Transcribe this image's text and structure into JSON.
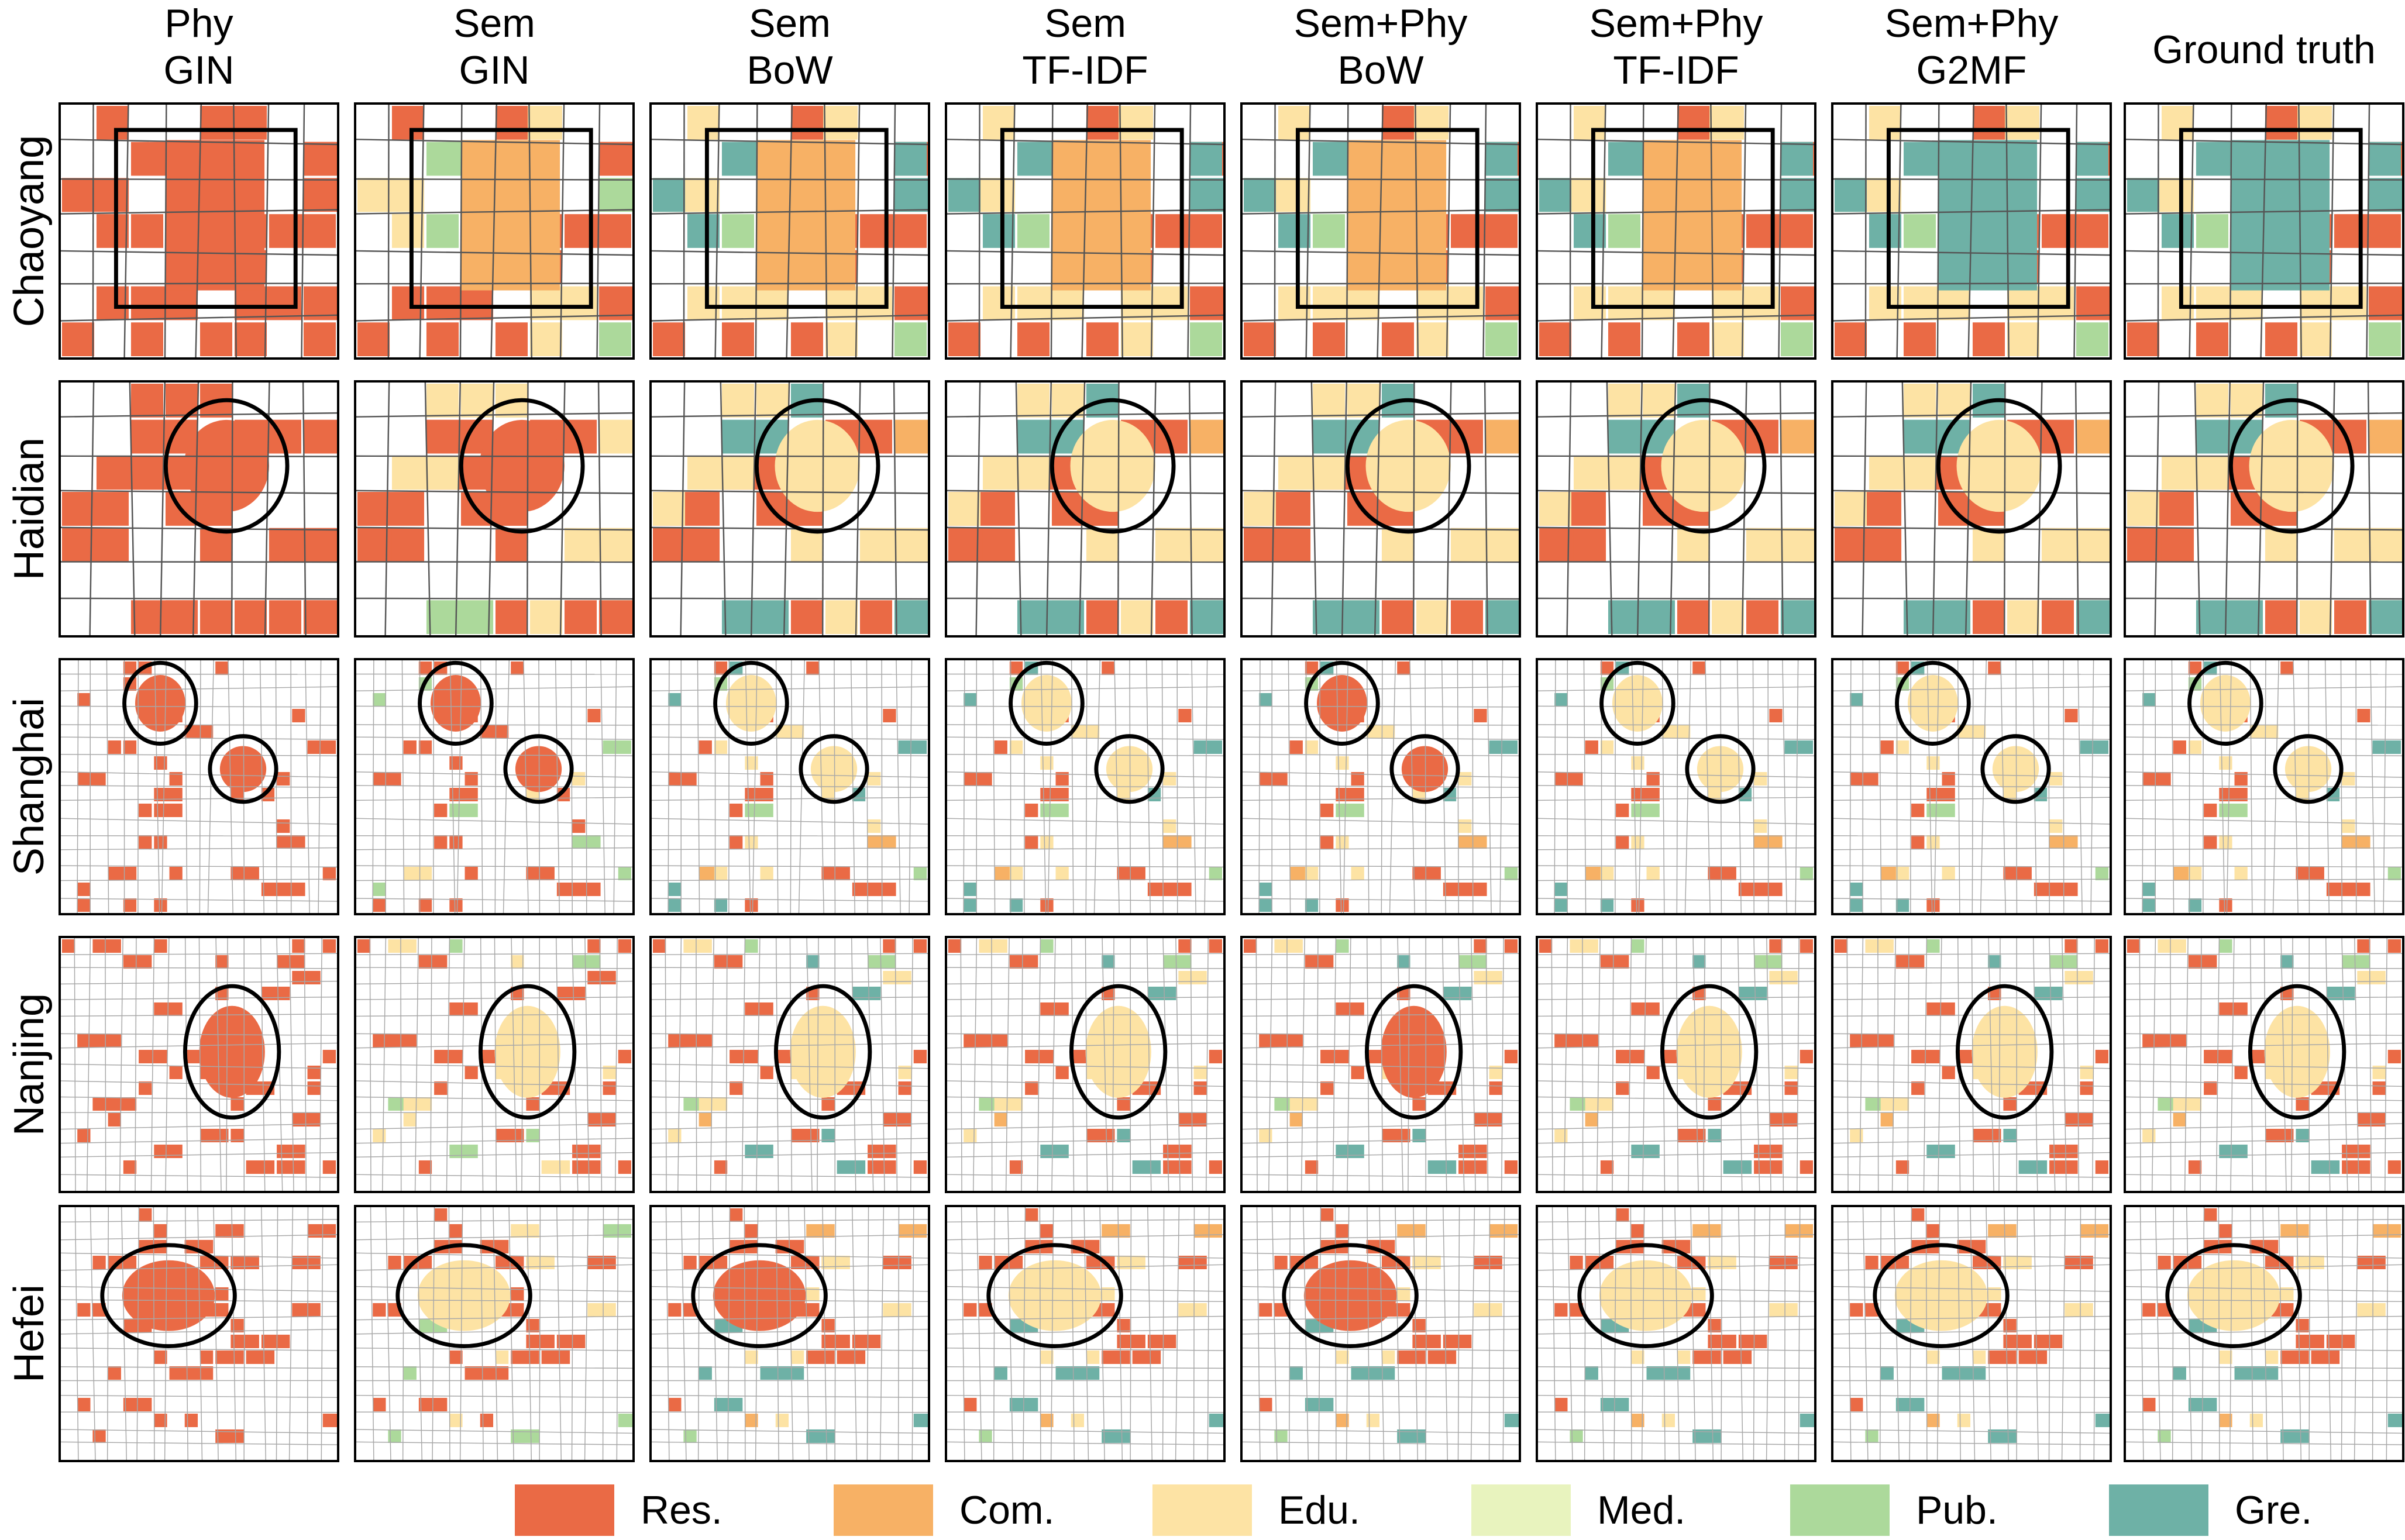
{
  "columns": [
    {
      "line1": "Phy",
      "line2": "GIN"
    },
    {
      "line1": "Sem",
      "line2": "GIN"
    },
    {
      "line1": "Sem",
      "line2": "BoW"
    },
    {
      "line1": "Sem",
      "line2": "TF-IDF"
    },
    {
      "line1": "Sem+Phy",
      "line2": "BoW"
    },
    {
      "line1": "Sem+Phy",
      "line2": "TF-IDF"
    },
    {
      "line1": "Sem+Phy",
      "line2": "G2MF"
    },
    {
      "line1": "Ground truth",
      "line2": ""
    }
  ],
  "rows": [
    "Chaoyang",
    "Haidian",
    "Shanghai",
    "Nanjing",
    "Hefei"
  ],
  "legend": [
    {
      "label": "Res.",
      "color": "#ea6a45"
    },
    {
      "label": "Com.",
      "color": "#f7b165"
    },
    {
      "label": "Edu.",
      "color": "#fde3a4"
    },
    {
      "label": "Med.",
      "color": "#e8f3be"
    },
    {
      "label": "Pub.",
      "color": "#acd99b"
    },
    {
      "label": "Gre.",
      "color": "#6eb1a6"
    }
  ]
}
